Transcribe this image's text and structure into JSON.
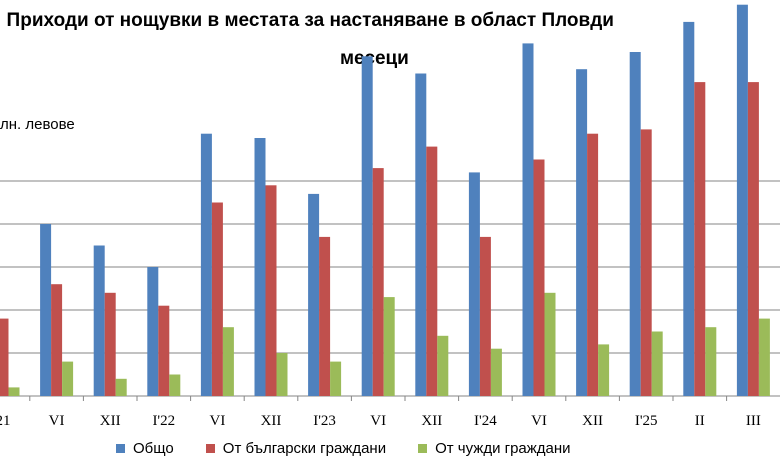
{
  "title_line1": ". Приходи от нощувки в местата за настаняване в област Пловди",
  "title_line2": "месеци",
  "unit_label": "лн. левове",
  "colors": {
    "total": "#4F81BD",
    "bg": "#C0504D",
    "foreign": "#9BBB59",
    "grid": "#868686"
  },
  "legend": [
    {
      "name": "Общо",
      "color": "#4F81BD"
    },
    {
      "name": "От български граждани",
      "color": "#C0504D"
    },
    {
      "name": "От чужди граждани",
      "color": "#9BBB59"
    }
  ],
  "chart_data": {
    "type": "bar",
    "title": ". Приходи от нощувки в местата за настаняване в област Пловди месеци",
    "ylabel": "лн. левове",
    "ylim": [
      0,
      9.5
    ],
    "grid": true,
    "legend_position": "bottom",
    "categories": [
      "21",
      "VI",
      "XII",
      "I'22",
      "VI",
      "XII",
      "I'23",
      "VI",
      "XII",
      "I'24",
      "VI",
      "XII",
      "I'25",
      "II",
      "III"
    ],
    "series": [
      {
        "name": "Общо",
        "values": [
          null,
          4.0,
          3.5,
          3.0,
          6.1,
          6.0,
          4.7,
          7.9,
          7.5,
          5.2,
          8.2,
          7.6,
          8.0,
          8.7,
          9.1
        ]
      },
      {
        "name": "От български граждани",
        "values": [
          1.8,
          2.6,
          2.4,
          2.1,
          4.5,
          4.9,
          3.7,
          5.3,
          5.8,
          3.7,
          5.5,
          6.1,
          6.2,
          7.3,
          7.3
        ]
      },
      {
        "name": "От чужди граждани",
        "values": [
          0.2,
          0.8,
          0.4,
          0.5,
          1.6,
          1.0,
          0.8,
          2.3,
          1.4,
          1.1,
          2.4,
          1.2,
          1.5,
          1.6,
          1.8
        ]
      }
    ]
  }
}
